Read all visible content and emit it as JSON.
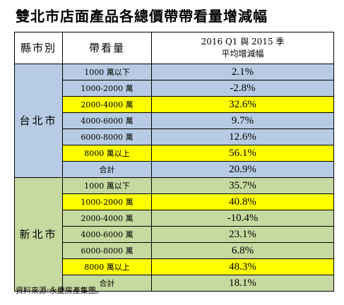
{
  "title": "雙北市店面產品各總價帶帶看量增減幅",
  "colors": {
    "taipei_bg": "#b7cce4",
    "new_taipei_bg": "#c6d9a0",
    "highlight": "#ffff00",
    "header_bg": "#ffffff"
  },
  "table": {
    "headers": {
      "city": "縣市別",
      "band": "帶看量",
      "pct_line1": "2016 Q1 與 2015 季",
      "pct_line2": "平均增減幅"
    },
    "groups": [
      {
        "city": "台北市",
        "bg": "#b7cce4",
        "rows": [
          {
            "band": "1000 萬以下",
            "value": "2.1%",
            "highlight": false
          },
          {
            "band": "1000-2000 萬",
            "value": "-2.8%",
            "highlight": false
          },
          {
            "band": "2000-4000 萬",
            "value": "32.6%",
            "highlight": true
          },
          {
            "band": "4000-6000 萬",
            "value": "9.7%",
            "highlight": false
          },
          {
            "band": "6000-8000 萬",
            "value": "12.6%",
            "highlight": false
          },
          {
            "band": "8000 萬以上",
            "value": "56.1%",
            "highlight": true
          },
          {
            "band": "合計",
            "value": "20.9%",
            "highlight": false
          }
        ]
      },
      {
        "city": "新北市",
        "bg": "#c6d9a0",
        "rows": [
          {
            "band": "1000 萬以下",
            "value": "35.7%",
            "highlight": false
          },
          {
            "band": "1000-2000 萬",
            "value": "40.8%",
            "highlight": true
          },
          {
            "band": "2000-4000 萬",
            "value": "-10.4%",
            "highlight": false
          },
          {
            "band": "4000-6000 萬",
            "value": "23.1%",
            "highlight": false
          },
          {
            "band": "6000-8000 萬",
            "value": "6.8%",
            "highlight": false
          },
          {
            "band": "8000 萬以上",
            "value": "48.3%",
            "highlight": true
          },
          {
            "band": "合計",
            "value": "18.1%",
            "highlight": false
          }
        ]
      }
    ]
  },
  "source": "資料來源:永慶房產集團。"
}
